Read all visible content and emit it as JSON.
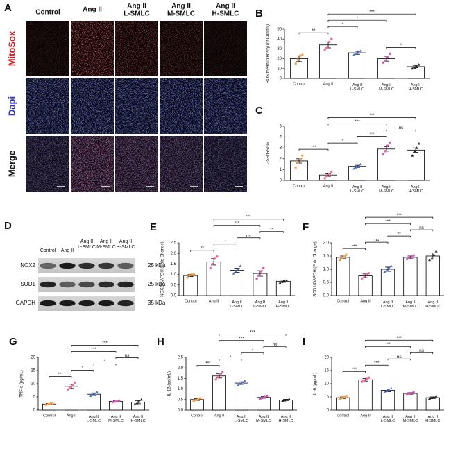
{
  "panel_a": {
    "label": "A",
    "columns": [
      "Control",
      "Ang II",
      "Ang II\nL-SMLC",
      "Ang II\nM-SMLC",
      "Ang II\nH-SMLC"
    ],
    "rows": [
      "MitoSox",
      "Dapi",
      "Merge"
    ]
  },
  "panel_d": {
    "label": "D",
    "columns": [
      "Control",
      "Ang II",
      "Ang II\nL-SMLC",
      "Ang II\nM-SMLC",
      "Ang II\nH-SMLC"
    ],
    "proteins": [
      "NOX2",
      "SOD1",
      "GAPDH"
    ],
    "sizes": [
      "25 kDa",
      "25 kDa",
      "35 kDa"
    ]
  },
  "chart_data": [
    {
      "type": "bar",
      "panel_label": "B",
      "y_label": "ROS mean intensity (of Control)",
      "categories": [
        "Control",
        "Ang II",
        "Ang II\nL-SMLC",
        "Ang II\nM-SMLC",
        "Ang II\nH-SMLC"
      ],
      "values": [
        20,
        34,
        26,
        20,
        12
      ],
      "errors": [
        3,
        3,
        1.5,
        2.5,
        1.2
      ],
      "points": [
        [
          15,
          19,
          23,
          24
        ],
        [
          29,
          31,
          37,
          40
        ],
        [
          24,
          25,
          27,
          28
        ],
        [
          16,
          18,
          22,
          25
        ],
        [
          10,
          11,
          12,
          14
        ]
      ],
      "point_colors": [
        "#f5a04a",
        "#f06e9a",
        "#4a6fd8",
        "#d45ab8",
        "#222222"
      ],
      "ylim": [
        0,
        50
      ],
      "yticks": [
        0,
        10,
        20,
        30,
        40,
        50
      ],
      "comparisons": [
        {
          "pair": [
            "Control",
            "Ang II"
          ],
          "label": "**"
        },
        {
          "pair": [
            "Ang II",
            "Ang II\nL-SMLC"
          ],
          "label": "*"
        },
        {
          "pair": [
            "Ang II\nM-SMLC",
            "Ang II\nH-SMLC"
          ],
          "label": "*"
        },
        {
          "pair": [
            "Ang II",
            "Ang II\nM-SMLC"
          ],
          "label": "*"
        },
        {
          "pair": [
            "Ang II",
            "Ang II\nH-SMLC"
          ],
          "label": "***"
        }
      ]
    },
    {
      "type": "bar",
      "panel_label": "C",
      "y_label": "GSH/GSSG",
      "categories": [
        "Control",
        "Ang II",
        "Ang II\nL-SMLC",
        "Ang II\nM-SMLC",
        "Ang II\nH-SMLC"
      ],
      "values": [
        1.8,
        0.5,
        1.3,
        2.9,
        2.8
      ],
      "errors": [
        0.2,
        0.12,
        0.1,
        0.2,
        0.2
      ],
      "points": [
        [
          1.2,
          1.6,
          2.0,
          2.3
        ],
        [
          0.2,
          0.4,
          0.6,
          0.8
        ],
        [
          1.1,
          1.2,
          1.3,
          1.5
        ],
        [
          2.4,
          2.7,
          3.2,
          3.5
        ],
        [
          2.3,
          2.7,
          3.0,
          3.4
        ]
      ],
      "point_colors": [
        "#f5a04a",
        "#f06e9a",
        "#4a6fd8",
        "#d45ab8",
        "#222222"
      ],
      "ylim": [
        0,
        5
      ],
      "yticks": [
        0,
        1,
        2,
        3,
        4,
        5
      ],
      "comparisons": [
        {
          "pair": [
            "Control",
            "Ang II"
          ],
          "label": "***"
        },
        {
          "pair": [
            "Ang II",
            "Ang II\nL-SMLC"
          ],
          "label": "*"
        },
        {
          "pair": [
            "Ang II\nL-SMLC",
            "Ang II\nM-SMLC"
          ],
          "label": "***"
        },
        {
          "pair": [
            "Ang II\nM-SMLC",
            "Ang II\nH-SMLC"
          ],
          "label": "ns"
        },
        {
          "pair": [
            "Ang II",
            "Ang II\nM-SMLC"
          ],
          "label": "***"
        },
        {
          "pair": [
            "Ang II",
            "Ang II\nH-SMLC"
          ],
          "label": "***"
        }
      ]
    },
    {
      "type": "bar",
      "panel_label": "E",
      "y_label": "NOX2/GAPDH (Fold Change)",
      "categories": [
        "Control",
        "Ang II",
        "Ang II\nL-SMLC",
        "Ang II\nM-SMLC",
        "Ang II\nH-SMLC"
      ],
      "values": [
        0.95,
        1.6,
        1.2,
        1.05,
        0.68
      ],
      "errors": [
        0.05,
        0.15,
        0.1,
        0.13,
        0.05
      ],
      "points": [
        [
          0.85,
          0.95,
          1.0,
          1.0
        ],
        [
          1.3,
          1.5,
          1.75,
          1.85
        ],
        [
          1.05,
          1.15,
          1.25,
          1.4
        ],
        [
          0.8,
          0.95,
          1.15,
          1.3
        ],
        [
          0.6,
          0.65,
          0.7,
          0.72
        ]
      ],
      "point_colors": [
        "#f5a04a",
        "#f06e9a",
        "#4a6fd8",
        "#d45ab8",
        "#222222"
      ],
      "ylim": [
        0,
        2.5
      ],
      "yticks": [
        {
          "value": 0,
          "label": "0.0"
        },
        {
          "value": 0.5,
          "label": "0.5"
        },
        {
          "value": 1,
          "label": "1.0"
        },
        {
          "value": 1.5,
          "label": "1.5"
        },
        {
          "value": 2,
          "label": "2.0"
        },
        {
          "value": 2.5,
          "label": "2.5"
        }
      ],
      "comparisons": [
        {
          "pair": [
            "Control",
            "Ang II"
          ],
          "label": "**"
        },
        {
          "pair": [
            "Ang II",
            "Ang II\nL-SMLC"
          ],
          "label": "*"
        },
        {
          "pair": [
            "Ang II\nL-SMLC",
            "Ang II\nM-SMLC"
          ],
          "label": "ns"
        },
        {
          "pair": [
            "Ang II\nM-SMLC",
            "Ang II\nH-SMLC"
          ],
          "label": "**"
        },
        {
          "pair": [
            "Ang II",
            "Ang II\nM-SMLC"
          ],
          "label": "***"
        },
        {
          "pair": [
            "Ang II",
            "Ang II\nH-SMLC"
          ],
          "label": "***"
        }
      ]
    },
    {
      "type": "bar",
      "panel_label": "F",
      "y_label": "SOD1/GAPDH (Fold Change)",
      "categories": [
        "Control",
        "Ang II",
        "Ang II\nL-SMLC",
        "Ang II\nM-SMLC",
        "Ang II\nH-SMLC"
      ],
      "values": [
        1.45,
        0.75,
        1.0,
        1.45,
        1.5
      ],
      "errors": [
        0.05,
        0.07,
        0.08,
        0.05,
        0.12
      ],
      "points": [
        [
          1.35,
          1.42,
          1.48,
          1.55
        ],
        [
          0.65,
          0.7,
          0.8,
          0.85
        ],
        [
          0.9,
          0.95,
          1.05,
          1.12
        ],
        [
          1.38,
          1.42,
          1.5,
          1.52
        ],
        [
          1.35,
          1.4,
          1.55,
          1.68
        ]
      ],
      "point_colors": [
        "#f5a04a",
        "#f06e9a",
        "#4a6fd8",
        "#d45ab8",
        "#222222"
      ],
      "ylim": [
        0,
        2
      ],
      "yticks": [
        {
          "value": 0,
          "label": "0.0"
        },
        {
          "value": 0.5,
          "label": "0.5"
        },
        {
          "value": 1,
          "label": "1.0"
        },
        {
          "value": 1.5,
          "label": "1.5"
        },
        {
          "value": 2,
          "label": "2.0"
        }
      ],
      "comparisons": [
        {
          "pair": [
            "Control",
            "Ang II"
          ],
          "label": "***"
        },
        {
          "pair": [
            "Ang II",
            "Ang II\nL-SMLC"
          ],
          "label": "ns"
        },
        {
          "pair": [
            "Ang II\nL-SMLC",
            "Ang II\nM-SMLC"
          ],
          "label": "**"
        },
        {
          "pair": [
            "Ang II\nM-SMLC",
            "Ang II\nH-SMLC"
          ],
          "label": "ns"
        },
        {
          "pair": [
            "Ang II",
            "Ang II\nM-SMLC"
          ],
          "label": "***"
        },
        {
          "pair": [
            "Ang II",
            "Ang II\nH-SMLC"
          ],
          "label": "***"
        }
      ]
    },
    {
      "type": "bar",
      "panel_label": "G",
      "y_label": "TNF-α (pg/mL)",
      "categories": [
        "Control",
        "Ang II",
        "Ang II\nL-SMLC",
        "Ang II\nM-SMLC",
        "Ang II\nH-SMLC"
      ],
      "values": [
        2.3,
        9,
        6,
        3.3,
        3
      ],
      "errors": [
        0.2,
        0.8,
        0.5,
        0.2,
        0.6
      ],
      "points": [
        [
          2,
          2.2,
          2.4,
          2.6
        ],
        [
          7.8,
          8.5,
          9.3,
          10.4
        ],
        [
          5.4,
          5.8,
          6.2,
          6.8
        ],
        [
          3.0,
          3.2,
          3.4,
          3.6
        ],
        [
          2.2,
          2.6,
          3.2,
          4.0
        ]
      ],
      "point_colors": [
        "#f5a04a",
        "#f06e9a",
        "#4a6fd8",
        "#d45ab8",
        "#222222"
      ],
      "ylim": [
        0,
        20
      ],
      "yticks": [
        0,
        5,
        10,
        15,
        20
      ],
      "comparisons": [
        {
          "pair": [
            "Control",
            "Ang II"
          ],
          "label": "***"
        },
        {
          "pair": [
            "Ang II",
            "Ang II\nL-SMLC"
          ],
          "label": "*"
        },
        {
          "pair": [
            "Ang II\nL-SMLC",
            "Ang II\nM-SMLC"
          ],
          "label": "*"
        },
        {
          "pair": [
            "Ang II\nM-SMLC",
            "Ang II\nH-SMLC"
          ],
          "label": "ns"
        },
        {
          "pair": [
            "Ang II",
            "Ang II\nM-SMLC"
          ],
          "label": "***"
        },
        {
          "pair": [
            "Ang II",
            "Ang II\nH-SMLC"
          ],
          "label": "***"
        }
      ]
    },
    {
      "type": "bar",
      "panel_label": "H",
      "y_label": "IL-1β (pg/mL)",
      "categories": [
        "Control",
        "Ang II",
        "Ang II\nL-SMLC",
        "Ang II\nM-SMLC",
        "Ang II\nH-SMLC"
      ],
      "values": [
        0.5,
        1.62,
        1.28,
        0.6,
        0.48
      ],
      "errors": [
        0.04,
        0.1,
        0.06,
        0.04,
        0.03
      ],
      "points": [
        [
          0.42,
          0.48,
          0.52,
          0.56
        ],
        [
          1.45,
          1.55,
          1.7,
          1.82
        ],
        [
          1.18,
          1.24,
          1.32,
          1.38
        ],
        [
          0.54,
          0.58,
          0.62,
          0.66
        ],
        [
          0.44,
          0.46,
          0.5,
          0.52
        ]
      ],
      "point_colors": [
        "#f5a04a",
        "#f06e9a",
        "#4a6fd8",
        "#d45ab8",
        "#222222"
      ],
      "ylim": [
        0,
        2.5
      ],
      "yticks": [
        {
          "value": 0,
          "label": "0.0"
        },
        {
          "value": 0.5,
          "label": "0.5"
        },
        {
          "value": 1,
          "label": "1.0"
        },
        {
          "value": 1.5,
          "label": "1.5"
        },
        {
          "value": 2,
          "label": "2.0"
        },
        {
          "value": 2.5,
          "label": "2.5"
        }
      ],
      "comparisons": [
        {
          "pair": [
            "Control",
            "Ang II"
          ],
          "label": "***"
        },
        {
          "pair": [
            "Ang II",
            "Ang II\nL-SMLC"
          ],
          "label": "*"
        },
        {
          "pair": [
            "Ang II\nL-SMLC",
            "Ang II\nM-SMLC"
          ],
          "label": "*"
        },
        {
          "pair": [
            "Ang II\nM-SMLC",
            "Ang II\nH-SMLC"
          ],
          "label": "ns"
        },
        {
          "pair": [
            "Ang II",
            "Ang II\nM-SMLC"
          ],
          "label": "***"
        },
        {
          "pair": [
            "Ang II",
            "Ang II\nH-SMLC"
          ],
          "label": "***"
        }
      ]
    },
    {
      "type": "bar",
      "panel_label": "I",
      "y_label": "IL-6 (pg/mL)",
      "categories": [
        "Control",
        "Ang II",
        "Ang II\nL-SMLC",
        "Ang II\nM-SMLC",
        "Ang II\nH-SMLC"
      ],
      "values": [
        4.7,
        11.5,
        7.5,
        6.3,
        4.7
      ],
      "errors": [
        0.3,
        0.5,
        0.5,
        0.3,
        0.3
      ],
      "points": [
        [
          4.2,
          4.6,
          4.9,
          5.1
        ],
        [
          10.8,
          11.2,
          11.8,
          12.3
        ],
        [
          6.8,
          7.2,
          7.8,
          8.3
        ],
        [
          5.9,
          6.2,
          6.5,
          6.8
        ],
        [
          4.3,
          4.6,
          4.9,
          5.2
        ]
      ],
      "point_colors": [
        "#f5a04a",
        "#f06e9a",
        "#4a6fd8",
        "#d45ab8",
        "#222222"
      ],
      "ylim": [
        0,
        20
      ],
      "yticks": [
        0,
        5,
        10,
        15,
        20
      ],
      "comparisons": [
        {
          "pair": [
            "Control",
            "Ang II"
          ],
          "label": "***"
        },
        {
          "pair": [
            "Ang II",
            "Ang II\nL-SMLC"
          ],
          "label": "***"
        },
        {
          "pair": [
            "Ang II\nL-SMLC",
            "Ang II\nM-SMLC"
          ],
          "label": "ns"
        },
        {
          "pair": [
            "Ang II\nM-SMLC",
            "Ang II\nH-SMLC"
          ],
          "label": "ns"
        },
        {
          "pair": [
            "Ang II",
            "Ang II\nM-SMLC"
          ],
          "label": "***"
        },
        {
          "pair": [
            "Ang II",
            "Ang II\nH-SMLC"
          ],
          "label": "***"
        }
      ]
    }
  ]
}
